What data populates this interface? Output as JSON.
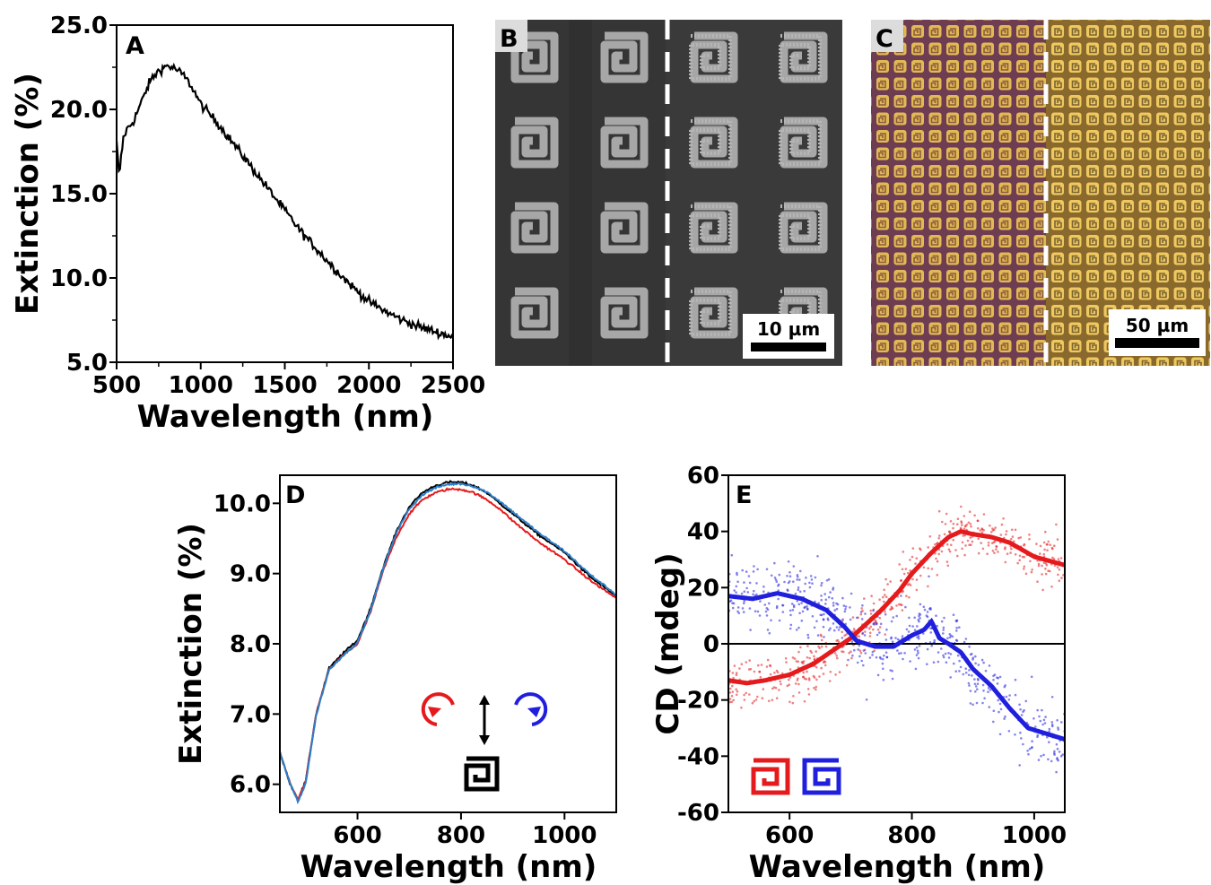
{
  "panels": {
    "A": {
      "letter": "A"
    },
    "B": {
      "letter": "B",
      "scale_label": "10 µm"
    },
    "C": {
      "letter": "C",
      "scale_label": "50 µm"
    },
    "D": {
      "letter": "D"
    },
    "E": {
      "letter": "E"
    }
  },
  "colors": {
    "black": "#000000",
    "red": "#e41a1c",
    "blue": "#1f1fdd",
    "teal_blue": "#2b7fc9",
    "sem_bg": "#3a3a3a",
    "sem_pattern": "#9c9c9c",
    "optical_left_bg": "#6e3d52",
    "optical_right_bg": "#8a6a2c",
    "optical_pattern": "#d9b24a"
  },
  "chart_data": [
    {
      "panel": "A",
      "type": "line",
      "xlabel": "Wavelength (nm)",
      "ylabel": "Extinction (%)",
      "xlim": [
        500,
        2500
      ],
      "ylim": [
        5.0,
        25.0
      ],
      "xticks": [
        500,
        1000,
        1500,
        2000,
        2500
      ],
      "xtick_labels": [
        "500",
        "1000",
        "1500",
        "2000",
        "2500"
      ],
      "yticks": [
        5.0,
        10.0,
        15.0,
        20.0,
        25.0
      ],
      "ytick_labels": [
        "5.0",
        "10.0",
        "15.0",
        "20.0",
        "25.0"
      ],
      "series": [
        {
          "color": "#000000",
          "noise": 0.25,
          "x": [
            500,
            515,
            525,
            540,
            560,
            600,
            650,
            700,
            750,
            800,
            850,
            900,
            950,
            1000,
            1100,
            1200,
            1300,
            1400,
            1500,
            1600,
            1700,
            1800,
            1900,
            2000,
            2100,
            2200,
            2300,
            2400,
            2500
          ],
          "y": [
            18.0,
            16.0,
            17.0,
            18.3,
            18.8,
            19.3,
            20.5,
            21.7,
            22.3,
            22.6,
            22.4,
            22.0,
            21.3,
            20.3,
            19.2,
            17.9,
            16.6,
            15.3,
            14.0,
            12.7,
            11.6,
            10.5,
            9.5,
            8.6,
            8.0,
            7.5,
            7.1,
            6.8,
            6.5
          ]
        }
      ]
    },
    {
      "panel": "D",
      "type": "line",
      "xlabel": "Wavelength (nm)",
      "ylabel": "Extinction (%)",
      "xlim": [
        450,
        1100
      ],
      "ylim": [
        5.6,
        10.4
      ],
      "xticks": [
        600,
        800,
        1000
      ],
      "xtick_labels": [
        "600",
        "800",
        "1000"
      ],
      "yticks": [
        6.0,
        7.0,
        8.0,
        9.0,
        10.0
      ],
      "ytick_labels": [
        "6.0",
        "7.0",
        "8.0",
        "9.0",
        "10.0"
      ],
      "series": [
        {
          "color": "#000000",
          "noise": 0.015,
          "x": [
            450,
            470,
            485,
            500,
            520,
            545,
            570,
            600,
            625,
            650,
            675,
            700,
            725,
            750,
            775,
            800,
            825,
            850,
            875,
            900,
            950,
            1000,
            1050,
            1100
          ],
          "y": [
            6.45,
            6.0,
            5.78,
            6.05,
            7.0,
            7.65,
            7.85,
            8.05,
            8.5,
            9.1,
            9.6,
            9.95,
            10.15,
            10.25,
            10.3,
            10.3,
            10.25,
            10.15,
            10.0,
            9.85,
            9.55,
            9.3,
            8.95,
            8.68
          ]
        },
        {
          "color": "#e41a1c",
          "noise": 0.015,
          "x": [
            450,
            470,
            485,
            500,
            520,
            545,
            570,
            600,
            625,
            650,
            675,
            700,
            725,
            750,
            775,
            800,
            825,
            850,
            875,
            900,
            950,
            1000,
            1050,
            1100
          ],
          "y": [
            6.45,
            6.0,
            5.78,
            6.05,
            7.0,
            7.63,
            7.82,
            8.0,
            8.45,
            9.05,
            9.52,
            9.85,
            10.05,
            10.15,
            10.2,
            10.2,
            10.15,
            10.05,
            9.92,
            9.75,
            9.45,
            9.2,
            8.9,
            8.65
          ]
        },
        {
          "color": "#2b7fc9",
          "noise": 0.015,
          "x": [
            450,
            470,
            485,
            500,
            520,
            545,
            570,
            600,
            625,
            650,
            675,
            700,
            725,
            750,
            775,
            800,
            825,
            850,
            875,
            900,
            950,
            1000,
            1050,
            1100
          ],
          "y": [
            6.45,
            6.0,
            5.75,
            6.02,
            6.98,
            7.63,
            7.82,
            8.02,
            8.47,
            9.08,
            9.58,
            9.92,
            10.12,
            10.22,
            10.27,
            10.28,
            10.24,
            10.16,
            10.03,
            9.88,
            9.58,
            9.32,
            8.98,
            8.7
          ]
        }
      ]
    },
    {
      "panel": "E",
      "type": "line",
      "xlabel": "Wavelength (nm)",
      "ylabel": "CD (mdeg)",
      "xlim": [
        500,
        1050
      ],
      "ylim": [
        -60,
        60
      ],
      "xticks": [
        600,
        800,
        1000
      ],
      "xtick_labels": [
        "600",
        "800",
        "1000"
      ],
      "yticks": [
        -60,
        -40,
        -20,
        0,
        20,
        40,
        60
      ],
      "ytick_labels": [
        "-60",
        "-40",
        "-20",
        "0",
        "20",
        "40",
        "60"
      ],
      "zero_line": true,
      "series": [
        {
          "color": "#e41a1c",
          "scatter_noise": 9,
          "x": [
            500,
            530,
            560,
            600,
            640,
            680,
            700,
            720,
            750,
            780,
            800,
            830,
            860,
            880,
            900,
            930,
            960,
            1000,
            1050
          ],
          "y": [
            -13,
            -14,
            -13,
            -11,
            -7,
            -1,
            2,
            6,
            12,
            19,
            25,
            32,
            38,
            40,
            39,
            38,
            36,
            31,
            28
          ]
        },
        {
          "color": "#1f1fdd",
          "scatter_noise": 12,
          "x": [
            500,
            540,
            580,
            620,
            660,
            690,
            710,
            740,
            770,
            800,
            820,
            832,
            845,
            860,
            880,
            900,
            930,
            960,
            990,
            1020,
            1050
          ],
          "y": [
            17,
            16,
            18,
            16,
            12,
            6,
            1,
            -1,
            -1,
            3,
            5,
            8,
            2,
            0,
            -3,
            -9,
            -15,
            -23,
            -30,
            -32,
            -34
          ]
        }
      ]
    }
  ]
}
